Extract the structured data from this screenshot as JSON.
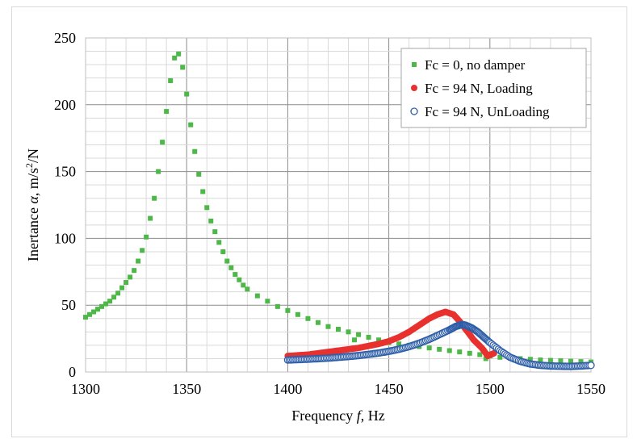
{
  "chart_data": {
    "type": "scatter",
    "title": "",
    "xlabel": "Frequency f, Hz",
    "ylabel": "Inertance α, m/s²/N",
    "xlim": [
      1300,
      1550
    ],
    "ylim": [
      0,
      250
    ],
    "x_ticks": [
      1300,
      1350,
      1400,
      1450,
      1500,
      1550
    ],
    "y_ticks": [
      0,
      50,
      100,
      150,
      200,
      250
    ],
    "grid": true,
    "legend_position": "top-right",
    "series": [
      {
        "name": "Fc = 0, no damper",
        "marker": "square",
        "color": "#4db848",
        "x": [
          1300,
          1302,
          1304,
          1306,
          1308,
          1310,
          1312,
          1314,
          1316,
          1318,
          1320,
          1322,
          1324,
          1326,
          1328,
          1330,
          1332,
          1334,
          1336,
          1338,
          1340,
          1342,
          1344,
          1346,
          1348,
          1350,
          1352,
          1354,
          1356,
          1358,
          1360,
          1362,
          1364,
          1366,
          1368,
          1370,
          1372,
          1374,
          1376,
          1378,
          1380,
          1385,
          1390,
          1395,
          1400,
          1405,
          1410,
          1415,
          1420,
          1425,
          1430,
          1433,
          1435,
          1440,
          1445,
          1450,
          1455,
          1460,
          1465,
          1470,
          1475,
          1480,
          1485,
          1490,
          1495,
          1498,
          1500,
          1505,
          1510,
          1515,
          1520,
          1525,
          1530,
          1535,
          1540,
          1545,
          1550
        ],
        "y": [
          41,
          43,
          45,
          47,
          49,
          51,
          53,
          56,
          59,
          63,
          67,
          71,
          76,
          83,
          91,
          101,
          115,
          130,
          150,
          172,
          195,
          218,
          235,
          238,
          228,
          208,
          185,
          165,
          148,
          135,
          123,
          113,
          105,
          97,
          90,
          83,
          78,
          73,
          69,
          65,
          62,
          57,
          53,
          49,
          46,
          43,
          40,
          37,
          34,
          32,
          30,
          24,
          28,
          26,
          24,
          22,
          21,
          20,
          19,
          18,
          17,
          16,
          15,
          14,
          13,
          10,
          12,
          11,
          10.5,
          10,
          9.5,
          9,
          8.7,
          8.4,
          8.1,
          7.8,
          7.5
        ]
      },
      {
        "name": "Fc = 94 N, Loading",
        "marker": "circle",
        "color": "#e8312f",
        "x": [
          1400,
          1405,
          1410,
          1415,
          1420,
          1425,
          1430,
          1435,
          1440,
          1445,
          1450,
          1455,
          1460,
          1465,
          1470,
          1474,
          1478,
          1482,
          1485,
          1488,
          1492,
          1496,
          1499,
          1502
        ],
        "y": [
          12,
          12.5,
          13,
          14,
          15,
          16,
          17,
          18,
          19.5,
          21,
          23,
          26,
          30,
          35,
          40,
          43,
          45,
          43,
          38,
          32,
          24,
          18,
          12,
          14
        ]
      },
      {
        "name": "Fc = 94 N, UnLoading",
        "marker": "open-circle",
        "color": "#2e5ea8",
        "x": [
          1400,
          1405,
          1410,
          1415,
          1420,
          1425,
          1430,
          1435,
          1440,
          1445,
          1450,
          1455,
          1460,
          1465,
          1470,
          1475,
          1480,
          1483,
          1486,
          1488,
          1491,
          1494,
          1497,
          1500,
          1505,
          1510,
          1515,
          1520,
          1525,
          1530,
          1535,
          1540,
          1545,
          1550
        ],
        "y": [
          9,
          9.3,
          9.6,
          10,
          10.4,
          11,
          11.6,
          12.3,
          13.2,
          14.2,
          15.5,
          17,
          19,
          21.5,
          24.5,
          28,
          31.5,
          34,
          35.5,
          35,
          33,
          30,
          26,
          22,
          16,
          11,
          8,
          6,
          5,
          4.5,
          4.3,
          4.2,
          4.5,
          5
        ]
      }
    ]
  }
}
